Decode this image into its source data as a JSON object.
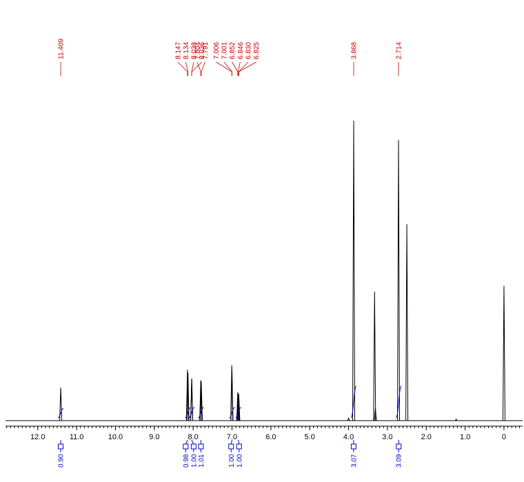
{
  "chart_data": {
    "type": "nmr",
    "xlim": [
      12.83,
      -0.48
    ],
    "ylim": [
      0,
      100
    ],
    "xticks": [
      {
        "value": 12,
        "label": "12.0"
      },
      {
        "value": 11,
        "label": "11.0"
      },
      {
        "value": 10,
        "label": "10.0"
      },
      {
        "value": 9,
        "label": "9.0"
      },
      {
        "value": 8,
        "label": "8.0"
      },
      {
        "value": 7,
        "label": "7.0"
      },
      {
        "value": 6,
        "label": "6.0"
      },
      {
        "value": 5,
        "label": "5.0"
      },
      {
        "value": 4,
        "label": "4.0"
      },
      {
        "value": 3,
        "label": "3.0"
      },
      {
        "value": 2,
        "label": "2.0"
      },
      {
        "value": 1,
        "label": "1.0"
      },
      0
    ],
    "color": "#000000",
    "peak_label_color": "#c00000",
    "integral_color": "#0000cc",
    "peaks": {
      "x": [
        11.409,
        8.147,
        8.134,
        8.038,
        8.036,
        7.804,
        7.791,
        7.006,
        7.001,
        6.852,
        6.846,
        6.83,
        6.825,
        4.0,
        3.868,
        3.33,
        3.31,
        2.714,
        2.5,
        1.23,
        0.0
      ],
      "values": [
        11,
        17,
        16,
        14,
        14,
        13.5,
        13,
        18.5,
        17,
        9.5,
        9,
        9,
        8.5,
        0.8,
        100,
        43,
        4,
        93.6,
        65.5,
        0.5,
        45
      ]
    },
    "peak_labels": [
      {
        "value": 11.409,
        "label": "11.409"
      },
      {
        "value": 8.147,
        "label": "8.147"
      },
      {
        "value": 8.134,
        "label": "8.134"
      },
      {
        "value": 8.038,
        "label": "8.038"
      },
      {
        "value": 8.036,
        "label": "8.036"
      },
      {
        "value": 7.804,
        "label": "7.804"
      },
      {
        "value": 7.791,
        "label": "7.791"
      },
      {
        "value": 7.006,
        "label": "7.006"
      },
      {
        "value": 7.001,
        "label": "7.001"
      },
      {
        "value": 6.852,
        "label": "6.852"
      },
      {
        "value": 6.846,
        "label": "6.846"
      },
      {
        "value": 6.83,
        "label": "6.830"
      },
      {
        "value": 6.825,
        "label": "6.825"
      },
      {
        "value": 3.868,
        "label": "3.868"
      },
      {
        "value": 2.714,
        "label": "2.714"
      }
    ],
    "integrals": [
      {
        "x": 11.41,
        "value": 0.9,
        "label": "0.90"
      },
      {
        "x": 8.14,
        "value": 0.98,
        "label": "0.98"
      },
      {
        "x": 8.04,
        "value": 1.0,
        "label": "1.00"
      },
      {
        "x": 7.8,
        "value": 1.01,
        "label": "1.01"
      },
      {
        "x": 7.0,
        "value": 1.0,
        "label": "1.00"
      },
      {
        "x": 6.84,
        "value": 1.0,
        "label": "1.00"
      },
      {
        "x": 3.87,
        "value": 3.07,
        "label": "3.07"
      },
      {
        "x": 2.71,
        "value": 3.09,
        "label": "3.09"
      }
    ]
  }
}
